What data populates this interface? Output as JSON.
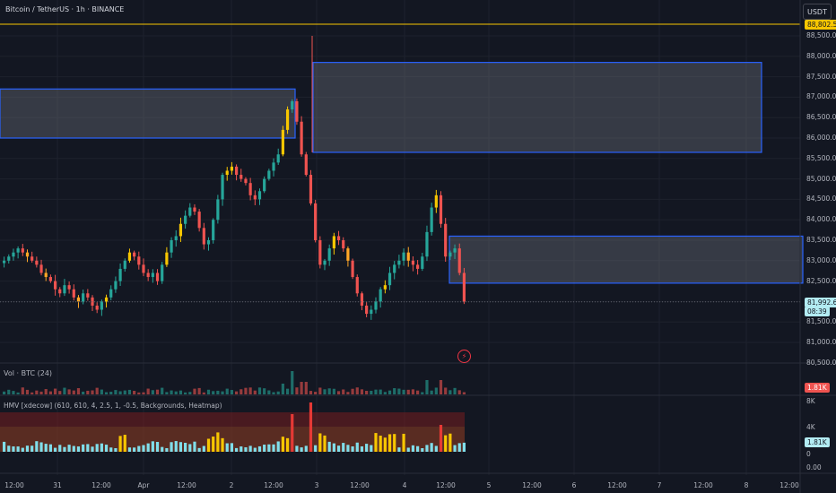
{
  "header": {
    "title": "Bitcoin / TetherUS · 1h · BINANCE",
    "currency": "USDT"
  },
  "price_axis": [
    "88,500.00",
    "88,000.00",
    "87,500.00",
    "87,000.00",
    "86,500.00",
    "86,000.00",
    "85,500.00",
    "85,000.00",
    "84,500.00",
    "84,000.00",
    "83,500.00",
    "83,000.00",
    "82,500.00",
    "81,500.00",
    "81,000.00",
    "80,500.00"
  ],
  "tags": {
    "hline": "88,802.52",
    "last_price": "81,992.69",
    "countdown": "08:39",
    "volume": "1.81K",
    "hmv": "1.81K"
  },
  "volume_pane": {
    "title": "Vol · BTC (24)"
  },
  "hmv_pane": {
    "title": "HMV [xdecow] (610, 610, 4, 2.5, 1, -0.5, Backgrounds, Heatmap)",
    "axis": [
      "8K",
      "4K",
      "0",
      "0.00"
    ]
  },
  "time_axis": [
    "12:00",
    "31",
    "12:00",
    "Apr",
    "12:00",
    "2",
    "12:00",
    "3",
    "12:00",
    "4",
    "12:00",
    "5",
    "12:00",
    "6",
    "12:00",
    "7",
    "12:00",
    "8",
    "12:00"
  ],
  "colors": {
    "bg": "#131722",
    "up": "#26a69a",
    "down": "#ef5350",
    "box_border": "#2962ff",
    "hline": "#f7c600"
  },
  "chart_data": {
    "type": "candlestick",
    "ylim": [
      80500,
      88900
    ],
    "horizontal_line": 88802.52,
    "last_price": 81992.69,
    "zones": [
      {
        "from": "Mar 30",
        "to": "Apr 2",
        "top": 87200,
        "bottom": 86000
      },
      {
        "from": "Apr 3",
        "to": "Apr 7",
        "top": 87850,
        "bottom": 85650
      },
      {
        "from": "Apr 4",
        "to": "Apr 8",
        "top": 83600,
        "bottom": 82450
      }
    ],
    "price_path": [
      83000,
      83100,
      83200,
      83300,
      83200,
      83100,
      83000,
      82900,
      82700,
      82600,
      82500,
      82300,
      82200,
      82400,
      82300,
      82100,
      82000,
      82200,
      82100,
      81900,
      81800,
      82000,
      82100,
      82300,
      82500,
      82800,
      83000,
      83200,
      83100,
      82900,
      82700,
      82600,
      82700,
      82500,
      82900,
      83200,
      83500,
      83600,
      83900,
      84100,
      84300,
      84200,
      83800,
      83400,
      83500,
      84000,
      84500,
      85100,
      85200,
      85300,
      85100,
      85000,
      84900,
      84600,
      84500,
      84700,
      85000,
      85200,
      85400,
      85600,
      86200,
      86700,
      86900,
      86400,
      85600,
      85100,
      84400,
      83500,
      82900,
      83000,
      83300,
      83600,
      83500,
      83300,
      83000,
      82600,
      82200,
      81900,
      81700,
      81800,
      82000,
      82300,
      82400,
      82700,
      82900,
      83000,
      83200,
      83000,
      82900,
      82800,
      83100,
      83700,
      84300,
      84600,
      83900,
      83100,
      83200,
      83300,
      82700,
      82000
    ]
  }
}
